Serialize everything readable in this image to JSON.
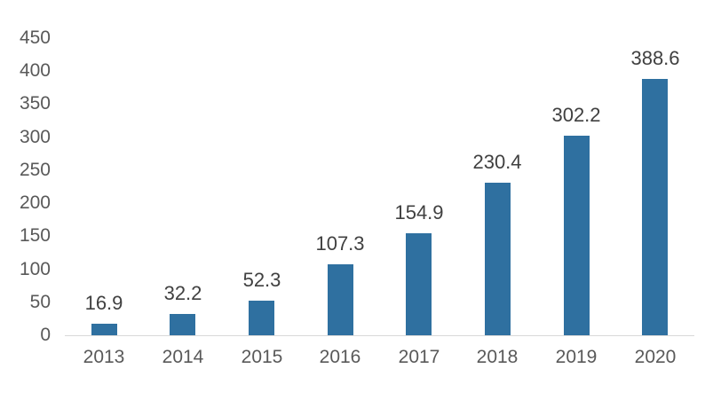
{
  "chart_data": {
    "type": "bar",
    "title": "",
    "categories": [
      "2013",
      "2014",
      "2015",
      "2016",
      "2017",
      "2018",
      "2019",
      "2020"
    ],
    "values": [
      16.9,
      32.2,
      52.3,
      107.3,
      154.9,
      230.4,
      302.2,
      388.6
    ],
    "value_labels": [
      "16.9",
      "32.2",
      "52.3",
      "107.3",
      "154.9",
      "230.4",
      "302.2",
      "388.6"
    ],
    "yticks": [
      0,
      50,
      100,
      150,
      200,
      250,
      300,
      350,
      400,
      450
    ],
    "ylim": [
      0,
      450
    ],
    "xlabel": "",
    "ylabel": "",
    "legend_position": "none",
    "grid": false,
    "colors": {
      "bar": "#2f70a0",
      "axis_line": "#d9d9d9",
      "tick_label": "#595959",
      "value_label": "#404040",
      "background": "#ffffff"
    }
  }
}
